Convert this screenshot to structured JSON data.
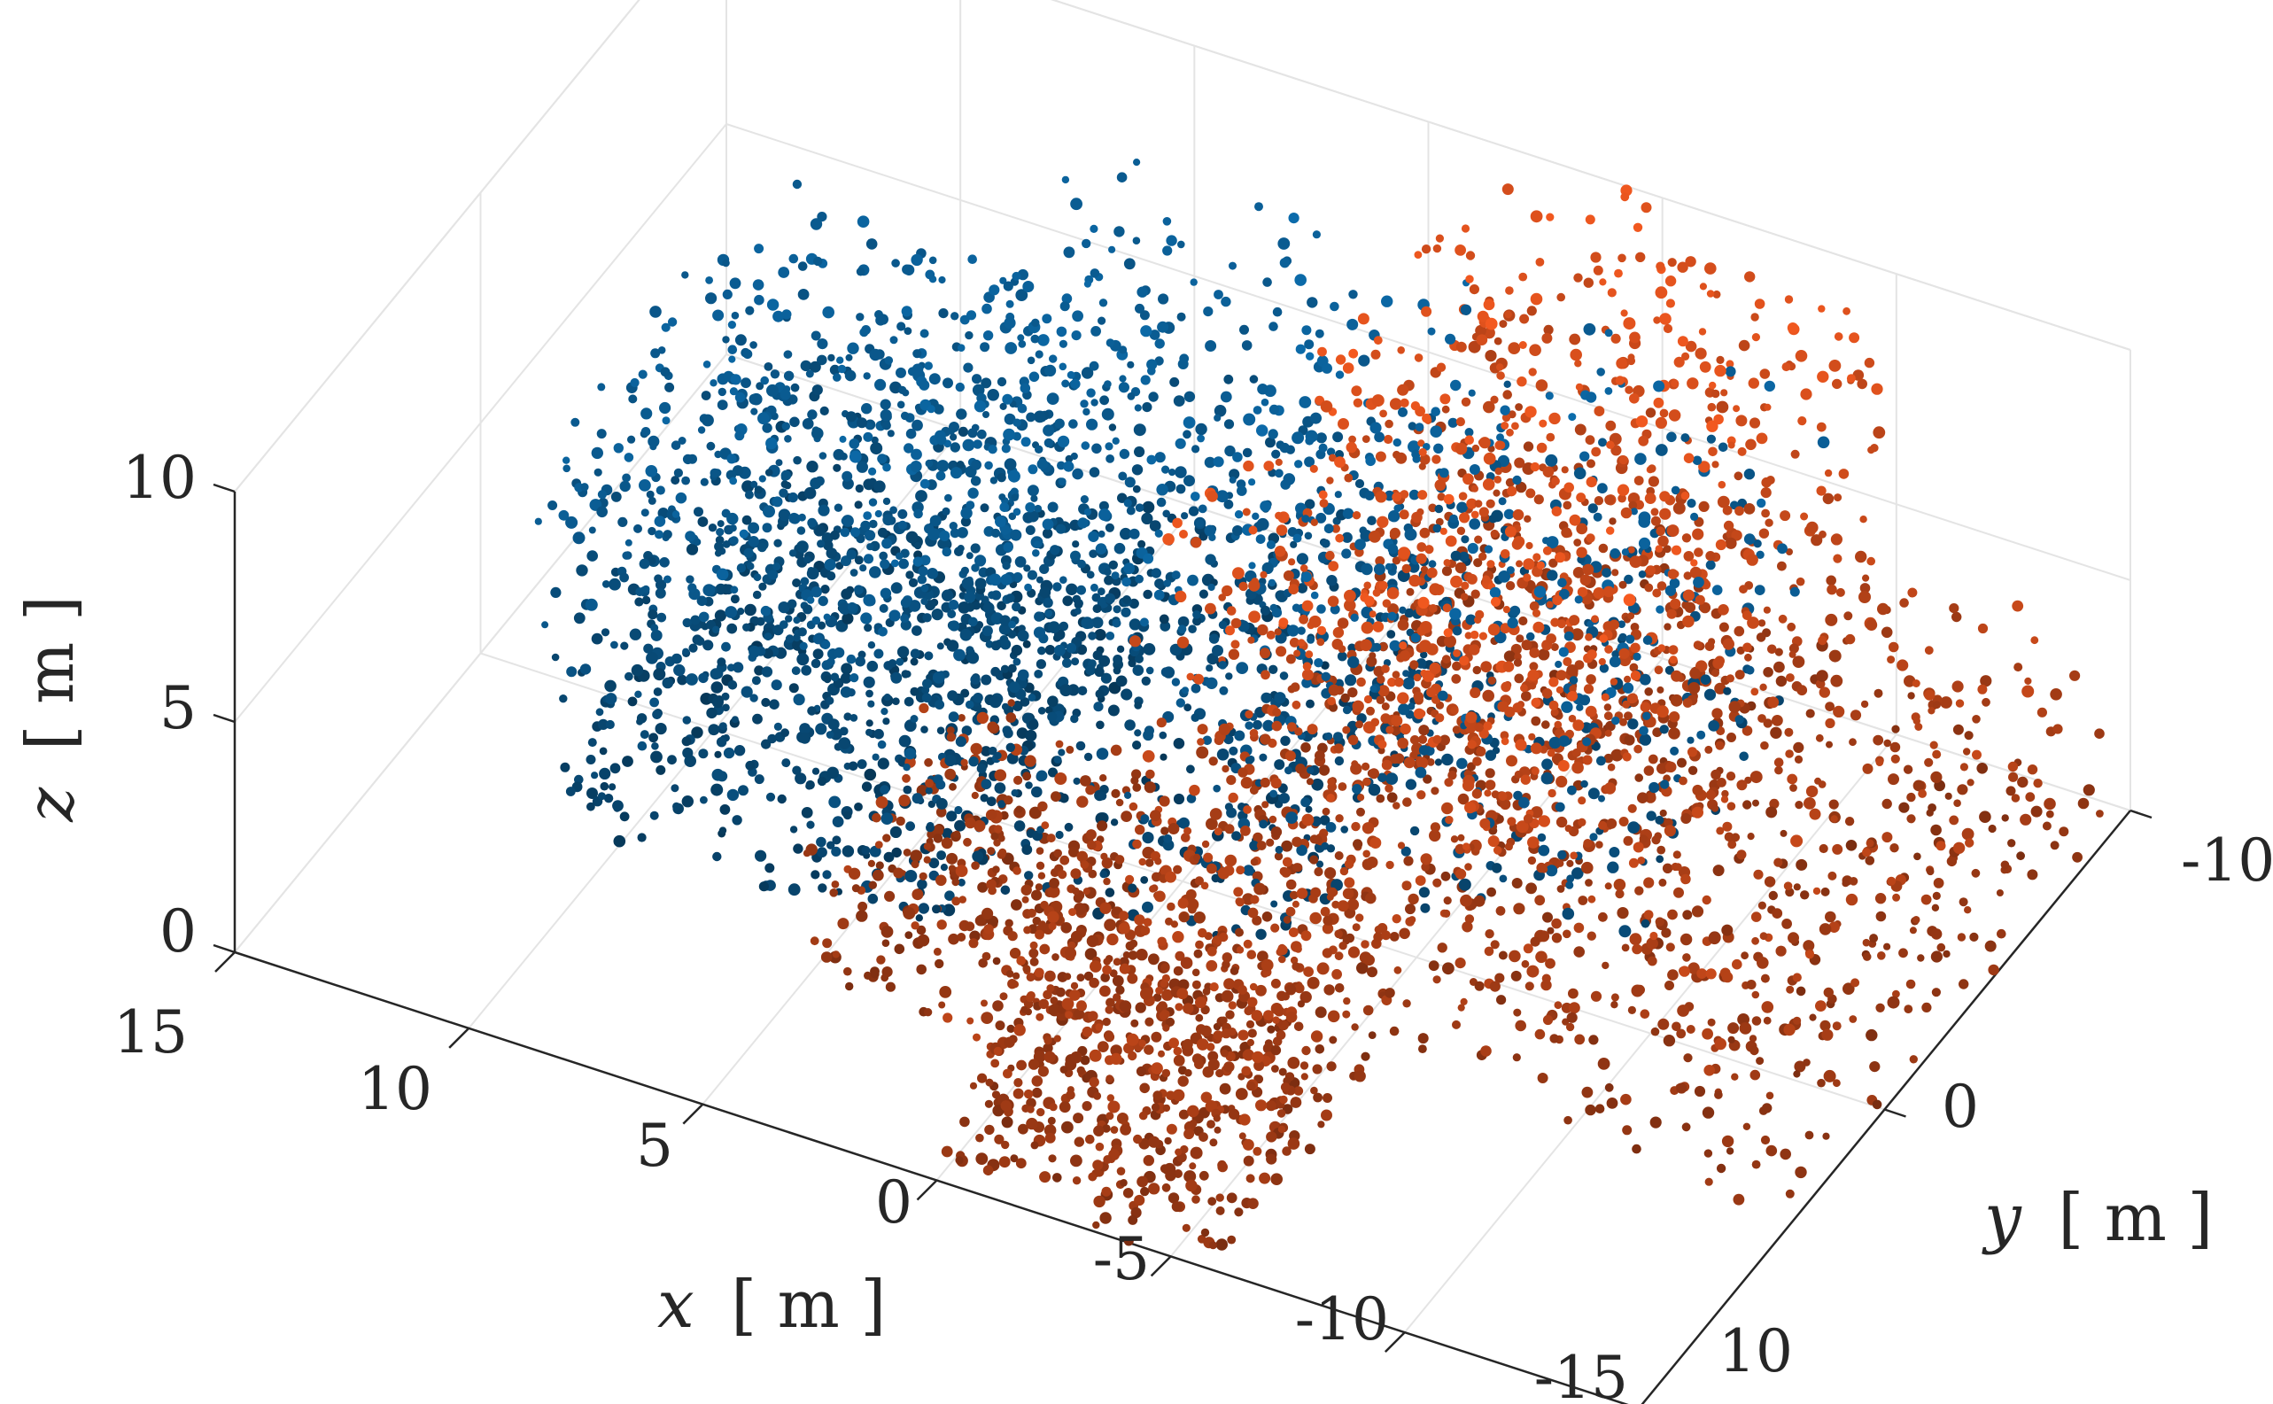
{
  "chart_data": {
    "type": "scatter3d",
    "axes": {
      "x": {
        "label_var": "x",
        "label_unit": "[ m ]",
        "range": [
          -15,
          15
        ],
        "ticks": [
          15,
          10,
          5,
          0,
          -5,
          -10,
          -15
        ],
        "tick_labels": [
          "15",
          "10",
          "5",
          "0",
          "-5",
          "-10",
          "-15"
        ]
      },
      "y": {
        "label_var": "y",
        "label_unit": "[ m ]",
        "range": [
          -10,
          10
        ],
        "ticks": [
          -10,
          0,
          10
        ],
        "tick_labels": [
          "-10",
          "0",
          "10"
        ]
      },
      "z": {
        "label_var": "z",
        "label_unit": "[ m ]",
        "range": [
          0,
          10
        ],
        "ticks": [
          0,
          5,
          10
        ],
        "tick_labels": [
          "0",
          "5",
          "10"
        ]
      }
    },
    "grid": true,
    "series": [
      {
        "color": "#0a5a8f",
        "clusters": [
          {
            "x": [
              3,
              12
            ],
            "y": [
              -6,
              4
            ],
            "z": [
              0,
              8
            ],
            "count": 1400
          },
          {
            "x": [
              -3,
              6
            ],
            "y": [
              -8,
              2
            ],
            "z": [
              0,
              9
            ],
            "count": 900
          },
          {
            "x": [
              -10,
              -2
            ],
            "y": [
              -8,
              2
            ],
            "z": [
              2,
              9
            ],
            "count": 350
          }
        ]
      },
      {
        "color": "#c8491a",
        "clusters": [
          {
            "x": [
              -10,
              -1
            ],
            "y": [
              -10,
              4
            ],
            "z": [
              1,
              10
            ],
            "count": 1700
          },
          {
            "x": [
              -6,
              0
            ],
            "y": [
              3,
              10
            ],
            "z": [
              0,
              4
            ],
            "count": 700
          },
          {
            "x": [
              0,
              5
            ],
            "y": [
              0,
              6
            ],
            "z": [
              0,
              3
            ],
            "count": 300
          },
          {
            "x": [
              -15,
              -10
            ],
            "y": [
              -9,
              4
            ],
            "z": [
              0,
              5
            ],
            "count": 400
          }
        ]
      }
    ]
  }
}
